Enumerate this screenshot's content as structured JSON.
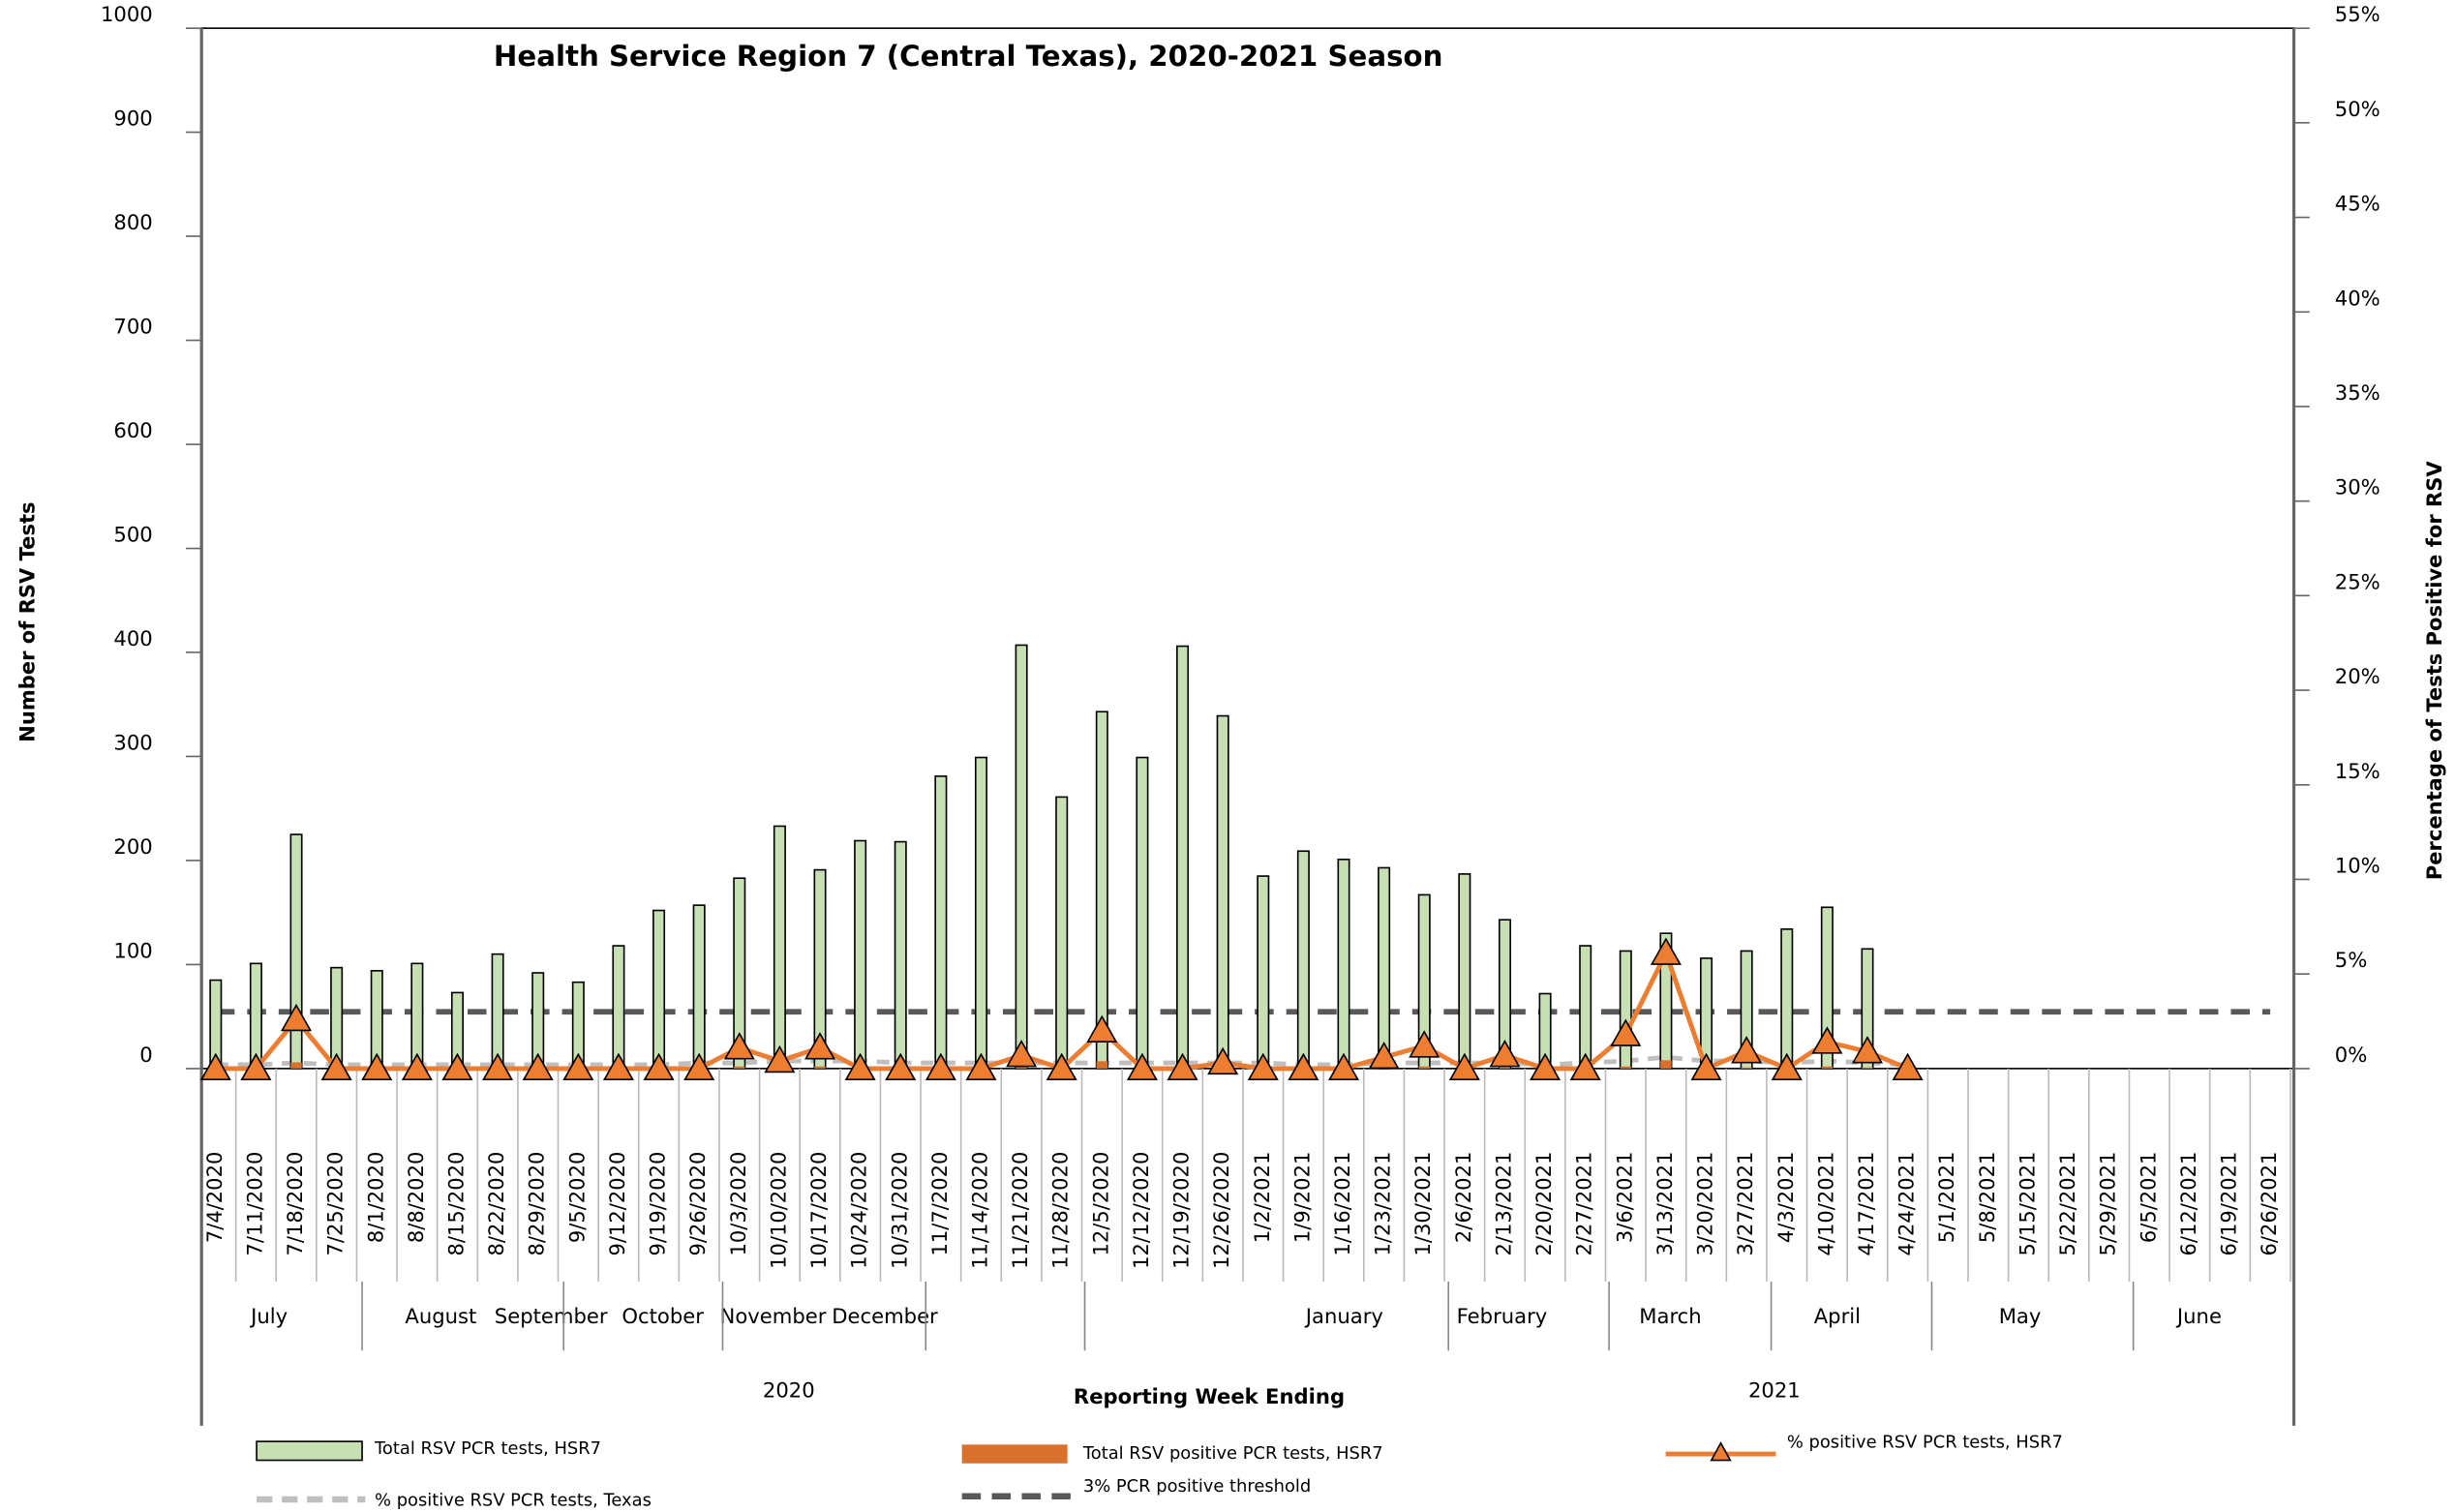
{
  "chart_data": {
    "type": "bar",
    "title": "Health Service Region 7 (Central Texas), 2020-2021 Season",
    "x_label": "Reporting Week Ending",
    "y_label": "Number of RSV Tests",
    "y2_label": "Percentage of Tests Positive for RSV",
    "categories": [
      "7/4/2020",
      "7/11/2020",
      "7/18/2020",
      "7/25/2020",
      "8/1/2020",
      "8/8/2020",
      "8/15/2020",
      "8/22/2020",
      "8/29/2020",
      "9/5/2020",
      "9/12/2020",
      "9/19/2020",
      "9/26/2020",
      "10/3/2020",
      "10/10/2020",
      "10/17/2020",
      "10/24/2020",
      "10/31/2020",
      "11/7/2020",
      "11/14/2020",
      "11/21/2020",
      "11/28/2020",
      "12/5/2020",
      "12/12/2020",
      "12/19/2020",
      "12/26/2020",
      "1/2/2021",
      "1/9/2021",
      "1/16/2021",
      "1/23/2021",
      "1/30/2021",
      "2/6/2021",
      "2/13/2021",
      "2/20/2021",
      "2/27/2021",
      "3/6/2021",
      "3/13/2021",
      "3/20/2021",
      "3/27/2021",
      "4/3/2021",
      "4/10/2021",
      "4/17/2021",
      "4/24/2021",
      "5/1/2021",
      "5/8/2021",
      "5/15/2021",
      "5/22/2021",
      "5/29/2021",
      "6/5/2021",
      "6/12/2021",
      "6/19/2021",
      "6/26/2021"
    ],
    "months": [
      "July",
      "August",
      "September",
      "October",
      "November",
      "December",
      "January",
      "February",
      "March",
      "April",
      "May",
      "June"
    ],
    "years": [
      "2020",
      "2021"
    ],
    "series": [
      {
        "name": "Total RSV PCR tests, HSR7",
        "color": "#c6e0b4",
        "kind": "bar",
        "values": [
          85,
          101,
          225,
          97,
          94,
          101,
          73,
          110,
          92,
          83,
          118,
          152,
          157,
          183,
          233,
          191,
          219,
          218,
          281,
          299,
          407,
          261,
          343,
          299,
          406,
          339,
          185,
          209,
          201,
          193,
          167,
          187,
          143,
          72,
          118,
          113,
          130,
          106,
          113,
          134,
          155,
          115,
          null,
          null,
          null,
          null,
          null,
          null,
          null,
          null,
          null,
          null
        ]
      },
      {
        "name": "Total RSV positive PCR tests, HSR7",
        "color": "#d9702b",
        "kind": "bar",
        "values": [
          0,
          0,
          6,
          0,
          0,
          0,
          0,
          0,
          0,
          0,
          0,
          0,
          0,
          2,
          1,
          2,
          0,
          0,
          0,
          0,
          3,
          0,
          7,
          0,
          0,
          1,
          0,
          0,
          0,
          1,
          2,
          0,
          1,
          0,
          0,
          2,
          8,
          0,
          1,
          0,
          2,
          1,
          null,
          null,
          null,
          null,
          null,
          null,
          null,
          null,
          null,
          null
        ]
      },
      {
        "name": "% positive RSV PCR tests, HSR7",
        "color": "#ed7d31",
        "kind": "line",
        "axis": "y2",
        "values": [
          0,
          0,
          2.6,
          0,
          0,
          0,
          0,
          0,
          0,
          0,
          0,
          0,
          0,
          1.1,
          0.4,
          1.1,
          0,
          0,
          0,
          0,
          0.7,
          0,
          2.0,
          0,
          0,
          0.3,
          0,
          0,
          0,
          0.6,
          1.2,
          0,
          0.7,
          0,
          0,
          1.8,
          6.1,
          0,
          0.9,
          0,
          1.4,
          0.9,
          0,
          null,
          null,
          null,
          null,
          null,
          null,
          null,
          null,
          null
        ]
      },
      {
        "name": "% positive RSV PCR  tests, Texas",
        "color": "#bfbfbf",
        "kind": "line",
        "axis": "y2",
        "values": [
          0.2,
          0.2,
          0.3,
          0.2,
          0.2,
          0.2,
          0.2,
          0.2,
          0.2,
          0.2,
          0.2,
          0.2,
          0.3,
          0.3,
          0.4,
          0.4,
          0.4,
          0.3,
          0.3,
          0.3,
          0.3,
          0.3,
          0.3,
          0.3,
          0.3,
          0.3,
          0.3,
          0.2,
          0.2,
          0.3,
          0.3,
          0.3,
          0.3,
          0.2,
          0.3,
          0.4,
          0.6,
          0.4,
          0.4,
          0.3,
          0.4,
          0.3,
          0.2,
          null,
          null,
          null,
          null,
          null,
          null,
          null,
          null,
          null
        ]
      },
      {
        "name": "3% PCR positive threshold",
        "color": "#595959",
        "kind": "threshold",
        "axis": "y2",
        "values": [
          3,
          3,
          3,
          3,
          3,
          3,
          3,
          3,
          3,
          3,
          3,
          3,
          3,
          3,
          3,
          3,
          3,
          3,
          3,
          3,
          3,
          3,
          3,
          3,
          3,
          3,
          3,
          3,
          3,
          3,
          3,
          3,
          3,
          3,
          3,
          3,
          3,
          3,
          3,
          3,
          3,
          3,
          3,
          3,
          3,
          3,
          3,
          3,
          3,
          3,
          3,
          3
        ]
      }
    ],
    "ylim": [
      0,
      1000
    ],
    "yticks": [
      0,
      100,
      200,
      300,
      400,
      500,
      600,
      700,
      800,
      900,
      1000
    ],
    "y2lim": [
      0,
      55
    ],
    "y2ticks": [
      {
        "value": 0,
        "label": "0%"
      },
      {
        "value": 5,
        "label": "5%"
      },
      {
        "value": 10,
        "label": "10%"
      },
      {
        "value": 15,
        "label": "15%"
      },
      {
        "value": 20,
        "label": "20%"
      },
      {
        "value": 25,
        "label": "25%"
      },
      {
        "value": 30,
        "label": "30%"
      },
      {
        "value": 35,
        "label": "35%"
      },
      {
        "value": 40,
        "label": "40%"
      },
      {
        "value": 45,
        "label": "45%"
      },
      {
        "value": 50,
        "label": "50%"
      },
      {
        "value": 55,
        "label": "55%"
      }
    ]
  }
}
